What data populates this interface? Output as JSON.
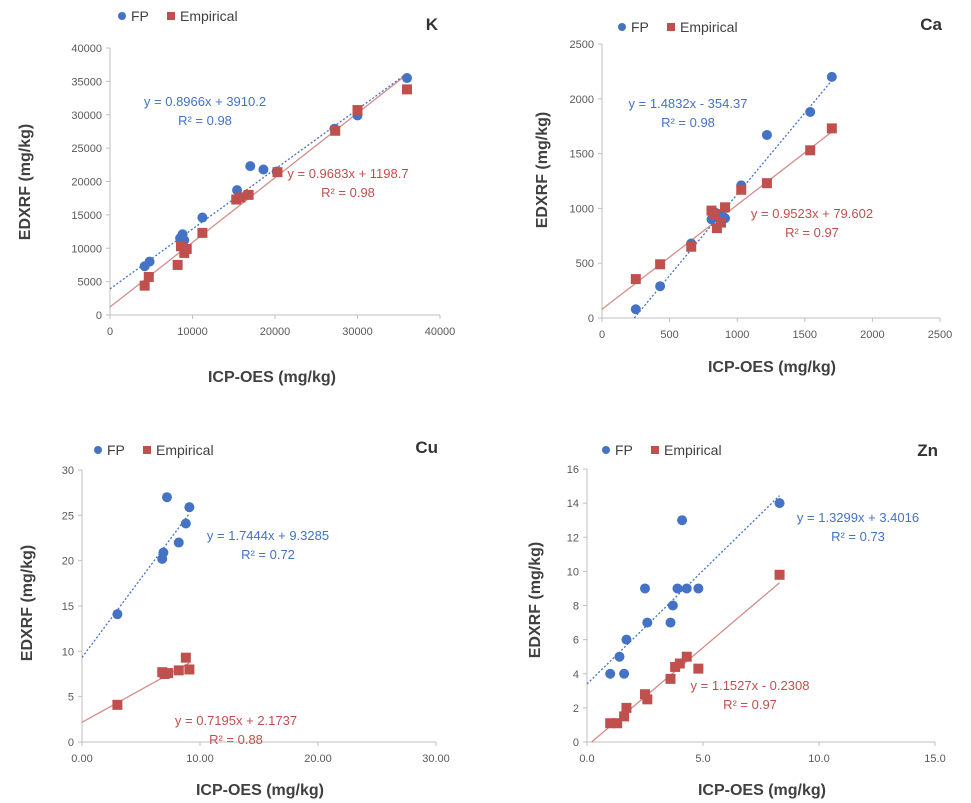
{
  "colors": {
    "fp": "#4472c4",
    "empirical": "#c0504d",
    "axis": "#bfbfbf",
    "text": "#404040"
  },
  "legend": {
    "fp": "FP",
    "empirical": "Empirical"
  },
  "chart_data": [
    {
      "type": "scatter",
      "element": "K",
      "xlabel": "ICP-OES (mg/kg)",
      "ylabel": "EDXRF (mg/kg)",
      "xlim": [
        0,
        40000
      ],
      "ylim": [
        0,
        40000
      ],
      "xticks": [
        "0",
        "10000",
        "20000",
        "30000",
        "40000"
      ],
      "yticks": [
        "0",
        "5000",
        "10000",
        "15000",
        "20000",
        "25000",
        "30000",
        "35000",
        "40000"
      ],
      "series": [
        {
          "name": "FP",
          "trend": {
            "slope": 0.8966,
            "intercept": 3910.2,
            "equation": "y = 0.8966x + 3910.2",
            "r2": "R² = 0.98"
          },
          "points": [
            [
              4200,
              7300
            ],
            [
              4800,
              8000
            ],
            [
              8500,
              11500
            ],
            [
              8800,
              12100
            ],
            [
              9000,
              11200
            ],
            [
              11200,
              14600
            ],
            [
              15400,
              18700
            ],
            [
              15700,
              17700
            ],
            [
              17000,
              22300
            ],
            [
              18600,
              21800
            ],
            [
              20200,
              21500
            ],
            [
              27200,
              27900
            ],
            [
              30000,
              29900
            ],
            [
              36000,
              35500
            ]
          ]
        },
        {
          "name": "Empirical",
          "trend": {
            "slope": 0.9683,
            "intercept": 1198.7,
            "equation": "y = 0.9683x + 1198.7",
            "r2": "R² = 0.98"
          },
          "points": [
            [
              4200,
              4400
            ],
            [
              4700,
              5700
            ],
            [
              8200,
              7500
            ],
            [
              8600,
              10300
            ],
            [
              9000,
              9300
            ],
            [
              9300,
              9900
            ],
            [
              11200,
              12300
            ],
            [
              15300,
              17300
            ],
            [
              15800,
              17600
            ],
            [
              16800,
              18000
            ],
            [
              20300,
              21400
            ],
            [
              27300,
              27600
            ],
            [
              30000,
              30700
            ],
            [
              36000,
              33800
            ]
          ]
        }
      ]
    },
    {
      "type": "scatter",
      "element": "Ca",
      "xlabel": "ICP-OES (mg/kg)",
      "ylabel": "EDXRF (mg/kg)",
      "xlim": [
        0,
        2500
      ],
      "ylim": [
        0,
        2500
      ],
      "xticks": [
        "0",
        "500",
        "1000",
        "1500",
        "2000",
        "2500"
      ],
      "yticks": [
        "0",
        "500",
        "1000",
        "1500",
        "2000",
        "2500"
      ],
      "series": [
        {
          "name": "FP",
          "trend": {
            "slope": 1.4832,
            "intercept": -354.37,
            "equation": "y = 1.4832x - 354.37",
            "r2": "R² = 0.98"
          },
          "points": [
            [
              250,
              80
            ],
            [
              430,
              290
            ],
            [
              660,
              680
            ],
            [
              810,
              900
            ],
            [
              840,
              960
            ],
            [
              880,
              950
            ],
            [
              910,
              910
            ],
            [
              1030,
              1210
            ],
            [
              1220,
              1670
            ],
            [
              1540,
              1880
            ],
            [
              1700,
              2200
            ]
          ]
        },
        {
          "name": "Empirical",
          "trend": {
            "slope": 0.9523,
            "intercept": 79.602,
            "equation": "y = 0.9523x + 79.602",
            "r2": "R² = 0.97"
          },
          "points": [
            [
              250,
              355
            ],
            [
              430,
              490
            ],
            [
              660,
              650
            ],
            [
              810,
              980
            ],
            [
              830,
              940
            ],
            [
              850,
              820
            ],
            [
              880,
              870
            ],
            [
              910,
              1010
            ],
            [
              1030,
              1170
            ],
            [
              1220,
              1230
            ],
            [
              1540,
              1530
            ],
            [
              1700,
              1730
            ]
          ]
        }
      ]
    },
    {
      "type": "scatter",
      "element": "Cu",
      "xlabel": "ICP-OES (mg/kg)",
      "ylabel": "EDXRF (mg/kg)",
      "xlim": [
        0,
        30
      ],
      "ylim": [
        0,
        30
      ],
      "xticks": [
        "0.00",
        "10.00",
        "20.00",
        "30.00"
      ],
      "yticks": [
        "0",
        "5",
        "10",
        "15",
        "20",
        "25",
        "30"
      ],
      "series": [
        {
          "name": "FP",
          "trend": {
            "slope": 1.7444,
            "intercept": 9.3285,
            "equation": "y = 1.7444x + 9.3285",
            "r2": "R² = 0.72"
          },
          "points": [
            [
              3.0,
              14.1
            ],
            [
              6.8,
              20.2
            ],
            [
              6.9,
              20.9
            ],
            [
              7.2,
              27.0
            ],
            [
              8.2,
              22.0
            ],
            [
              8.8,
              24.1
            ],
            [
              9.1,
              25.9
            ]
          ]
        },
        {
          "name": "Empirical",
          "trend": {
            "slope": 0.7195,
            "intercept": 2.1737,
            "equation": "y = 0.7195x + 2.1737",
            "r2": "R² = 0.88"
          },
          "points": [
            [
              3.0,
              4.1
            ],
            [
              6.8,
              7.7
            ],
            [
              7.0,
              7.5
            ],
            [
              7.3,
              7.6
            ],
            [
              8.2,
              7.9
            ],
            [
              8.8,
              9.3
            ],
            [
              9.1,
              8.0
            ]
          ]
        }
      ]
    },
    {
      "type": "scatter",
      "element": "Zn",
      "xlabel": "ICP-OES (mg/kg)",
      "ylabel": "EDXRF (mg/kg)",
      "xlim": [
        0,
        15
      ],
      "ylim": [
        0,
        16
      ],
      "xticks": [
        "0.0",
        "5.0",
        "10.0",
        "15.0"
      ],
      "yticks": [
        "0",
        "2",
        "4",
        "6",
        "8",
        "10",
        "12",
        "14",
        "16"
      ],
      "series": [
        {
          "name": "FP",
          "trend": {
            "slope": 1.3299,
            "intercept": 3.4016,
            "equation": "y = 1.3299x + 3.4016",
            "r2": "R² = 0.73"
          },
          "points": [
            [
              1.0,
              4.0
            ],
            [
              1.4,
              5.0
            ],
            [
              1.6,
              4.0
            ],
            [
              1.7,
              6.0
            ],
            [
              2.5,
              9.0
            ],
            [
              2.6,
              7.0
            ],
            [
              3.6,
              7.0
            ],
            [
              3.7,
              8.0
            ],
            [
              3.9,
              9.0
            ],
            [
              4.1,
              13.0
            ],
            [
              4.3,
              9.0
            ],
            [
              4.8,
              9.0
            ],
            [
              8.3,
              14.0
            ]
          ]
        },
        {
          "name": "Empirical",
          "trend": {
            "slope": 1.1527,
            "intercept": -0.2308,
            "equation": "y = 1.1527x - 0.2308",
            "r2": "R² = 0.97"
          },
          "points": [
            [
              1.0,
              1.1
            ],
            [
              1.3,
              1.1
            ],
            [
              1.6,
              1.5
            ],
            [
              1.7,
              2.0
            ],
            [
              2.5,
              2.8
            ],
            [
              2.6,
              2.5
            ],
            [
              3.6,
              3.7
            ],
            [
              3.8,
              4.4
            ],
            [
              4.0,
              4.6
            ],
            [
              4.3,
              5.0
            ],
            [
              4.8,
              4.3
            ],
            [
              8.3,
              9.8
            ]
          ]
        }
      ]
    }
  ]
}
